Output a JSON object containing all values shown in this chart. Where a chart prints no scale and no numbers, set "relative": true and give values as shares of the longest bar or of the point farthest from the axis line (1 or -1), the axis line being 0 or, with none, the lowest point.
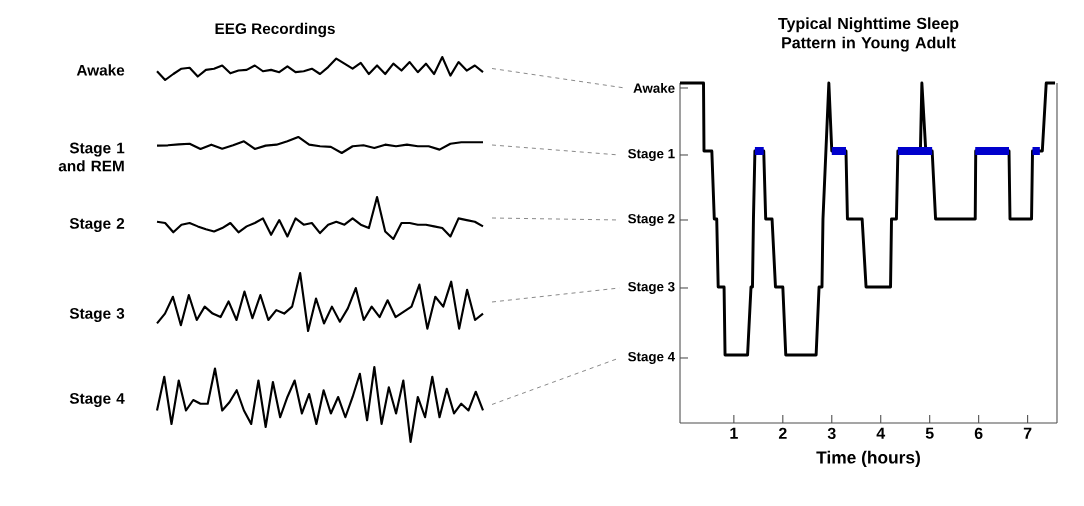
{
  "chart_data": [
    {
      "type": "line",
      "title": "EEG Recordings",
      "ylabel": "Awake",
      "relative": true,
      "categories": [
        null,
        null,
        null,
        null,
        null,
        null,
        null,
        null,
        null,
        null,
        null,
        null,
        null,
        null,
        null,
        null,
        null,
        null,
        null,
        null,
        null,
        null,
        null,
        null,
        null,
        null,
        null,
        null,
        null,
        null,
        null,
        null,
        null,
        null,
        null,
        null,
        null,
        null,
        null,
        null,
        null
      ],
      "series": [
        {
          "color": "#000000",
          "values": [
            0.38,
            0,
            0.26,
            0.49,
            0.53,
            0.15,
            0.44,
            0.49,
            0.63,
            0.29,
            0.41,
            0.44,
            0.63,
            0.38,
            0.44,
            0.34,
            0.59,
            0.34,
            0.38,
            0.49,
            0.26,
            0.56,
            0.93,
            0.71,
            0.49,
            0.74,
            0.26,
            0.63,
            0.26,
            0.71,
            0.41,
            0.78,
            0.34,
            0.71,
            0.26,
            1,
            0.19,
            0.78,
            0.41,
            0.63,
            0.34
          ]
        }
      ]
    },
    {
      "type": "line",
      "ylabel": "Stage 1 and REM",
      "relative": true,
      "categories": [
        null,
        null,
        null,
        null,
        null,
        null,
        null,
        null,
        null,
        null,
        null,
        null,
        null,
        null,
        null,
        null,
        null,
        null,
        null,
        null,
        null,
        null,
        null,
        null,
        null,
        null,
        null,
        null,
        null,
        null,
        null
      ],
      "series": [
        {
          "color": "#000000",
          "values": [
            0.46,
            0.48,
            0.54,
            0.58,
            0.25,
            0.52,
            0.27,
            0.48,
            0.73,
            0.25,
            0.46,
            0.52,
            0.73,
            1,
            0.52,
            0.42,
            0.38,
            0,
            0.42,
            0.48,
            0.31,
            0.52,
            0.42,
            0.52,
            0.42,
            0.42,
            0.21,
            0.58,
            0.67,
            0.67,
            0.67
          ]
        }
      ]
    },
    {
      "type": "line",
      "ylabel": "Stage 2",
      "relative": true,
      "categories": [
        null,
        null,
        null,
        null,
        null,
        null,
        null,
        null,
        null,
        null,
        null,
        null,
        null,
        null,
        null,
        null,
        null,
        null,
        null,
        null,
        null,
        null,
        null,
        null,
        null,
        null,
        null,
        null,
        null,
        null,
        null,
        null,
        null,
        null,
        null,
        null,
        null,
        null,
        null,
        null,
        null
      ],
      "series": [
        {
          "color": "#000000",
          "values": [
            0.41,
            0.38,
            0.16,
            0.34,
            0.38,
            0.3,
            0.23,
            0.18,
            0.26,
            0.38,
            0.16,
            0.3,
            0.38,
            0.49,
            0.1,
            0.45,
            0.06,
            0.49,
            0.34,
            0.38,
            0.14,
            0.34,
            0.41,
            0.34,
            0.49,
            0.34,
            0.26,
            1,
            0.18,
            0,
            0.38,
            0.38,
            0.34,
            0.34,
            0.3,
            0.26,
            0.06,
            0.49,
            0.45,
            0.41,
            0.3
          ]
        }
      ]
    },
    {
      "type": "line",
      "ylabel": "Stage 3",
      "relative": true,
      "categories": [
        null,
        null,
        null,
        null,
        null,
        null,
        null,
        null,
        null,
        null,
        null,
        null,
        null,
        null,
        null,
        null,
        null,
        null,
        null,
        null,
        null,
        null,
        null,
        null,
        null,
        null,
        null,
        null,
        null,
        null,
        null,
        null,
        null,
        null,
        null,
        null,
        null,
        null,
        null,
        null,
        null,
        null
      ],
      "series": [
        {
          "color": "#000000",
          "values": [
            0.13,
            0.3,
            0.59,
            0.1,
            0.62,
            0.19,
            0.42,
            0.3,
            0.24,
            0.51,
            0.19,
            0.68,
            0.22,
            0.62,
            0.19,
            0.36,
            0.3,
            0.42,
            1,
            0,
            0.56,
            0.13,
            0.42,
            0.16,
            0.39,
            0.74,
            0.19,
            0.42,
            0.24,
            0.53,
            0.24,
            0.33,
            0.42,
            0.8,
            0.04,
            0.59,
            0.42,
            0.85,
            0.04,
            0.71,
            0.19,
            0.3
          ]
        }
      ]
    },
    {
      "type": "line",
      "ylabel": "Stage 4",
      "relative": true,
      "categories": [
        null,
        null,
        null,
        null,
        null,
        null,
        null,
        null,
        null,
        null,
        null,
        null,
        null,
        null,
        null,
        null,
        null,
        null,
        null,
        null,
        null,
        null,
        null,
        null,
        null,
        null,
        null,
        null,
        null,
        null,
        null,
        null,
        null,
        null,
        null,
        null,
        null,
        null,
        null,
        null,
        null,
        null,
        null,
        null,
        null,
        null
      ],
      "series": [
        {
          "color": "#000000",
          "values": [
            0.42,
            0.87,
            0.24,
            0.82,
            0.42,
            0.56,
            0.51,
            0.51,
            0.98,
            0.42,
            0.53,
            0.69,
            0.42,
            0.24,
            0.82,
            0.2,
            0.8,
            0.33,
            0.6,
            0.82,
            0.38,
            0.64,
            0.24,
            0.69,
            0.38,
            0.6,
            0.33,
            0.6,
            0.91,
            0.29,
            1,
            0.24,
            0.73,
            0.38,
            0.82,
            0,
            0.6,
            0.33,
            0.87,
            0.33,
            0.71,
            0.38,
            0.51,
            0.42,
            0.67,
            0.42
          ]
        }
      ]
    },
    {
      "type": "line",
      "title": "Typical Nighttime Sleep Pattern in Young Adult",
      "xlabel": "Time (hours)",
      "relative": true,
      "annotations": [
        "Awake",
        "Stage 1",
        "Stage 2",
        "Stage 3",
        "Stage 4"
      ],
      "series": [
        {
          "color": "#000000",
          "x": [
            -0.1,
            0.38,
            0.39,
            0.55,
            0.6,
            0.65,
            0.68,
            0.8,
            0.82,
            1.28,
            1.35,
            1.38,
            1.4,
            1.43,
            1.61,
            1.65,
            1.78,
            1.85,
            2.0,
            2.06,
            2.68,
            2.74,
            2.8,
            2.82,
            2.94,
            3.0,
            3.29,
            3.32,
            3.62,
            3.7,
            4.2,
            4.22,
            4.32,
            4.35,
            4.81,
            4.84,
            4.92,
            5.05,
            5.12,
            5.93,
            5.94,
            6.62,
            6.64,
            7.08,
            7.1,
            7.3,
            7.38,
            7.56
          ],
          "values": [
            1,
            1,
            0.8,
            0.8,
            0.6,
            0.6,
            0.4,
            0.4,
            0.2,
            0.2,
            0.4,
            0.4,
            0.6,
            0.8,
            0.8,
            0.6,
            0.6,
            0.4,
            0.4,
            0.2,
            0.2,
            0.4,
            0.4,
            0.6,
            1,
            0.8,
            0.8,
            0.6,
            0.6,
            0.4,
            0.4,
            0.6,
            0.6,
            0.8,
            0.8,
            1,
            0.8,
            0.8,
            0.6,
            0.6,
            0.8,
            0.8,
            0.6,
            0.6,
            0.8,
            0.8,
            1,
            1
          ]
        },
        {
          "color": "#0000cc",
          "x": [
            1.43,
            1.61,
            1.62,
            3.0,
            3.29,
            3.3,
            4.35,
            5.05,
            5.06,
            5.93,
            6.62,
            6.63,
            7.1,
            7.25
          ],
          "values": [
            0.8,
            0.8,
            null,
            0.8,
            0.8,
            null,
            0.8,
            0.8,
            null,
            0.8,
            0.8,
            null,
            0.8,
            0.8
          ]
        }
      ],
      "xlim": [
        -0.1,
        7.6
      ],
      "xticks": [
        1,
        2,
        3,
        4,
        5,
        6,
        7
      ]
    }
  ]
}
